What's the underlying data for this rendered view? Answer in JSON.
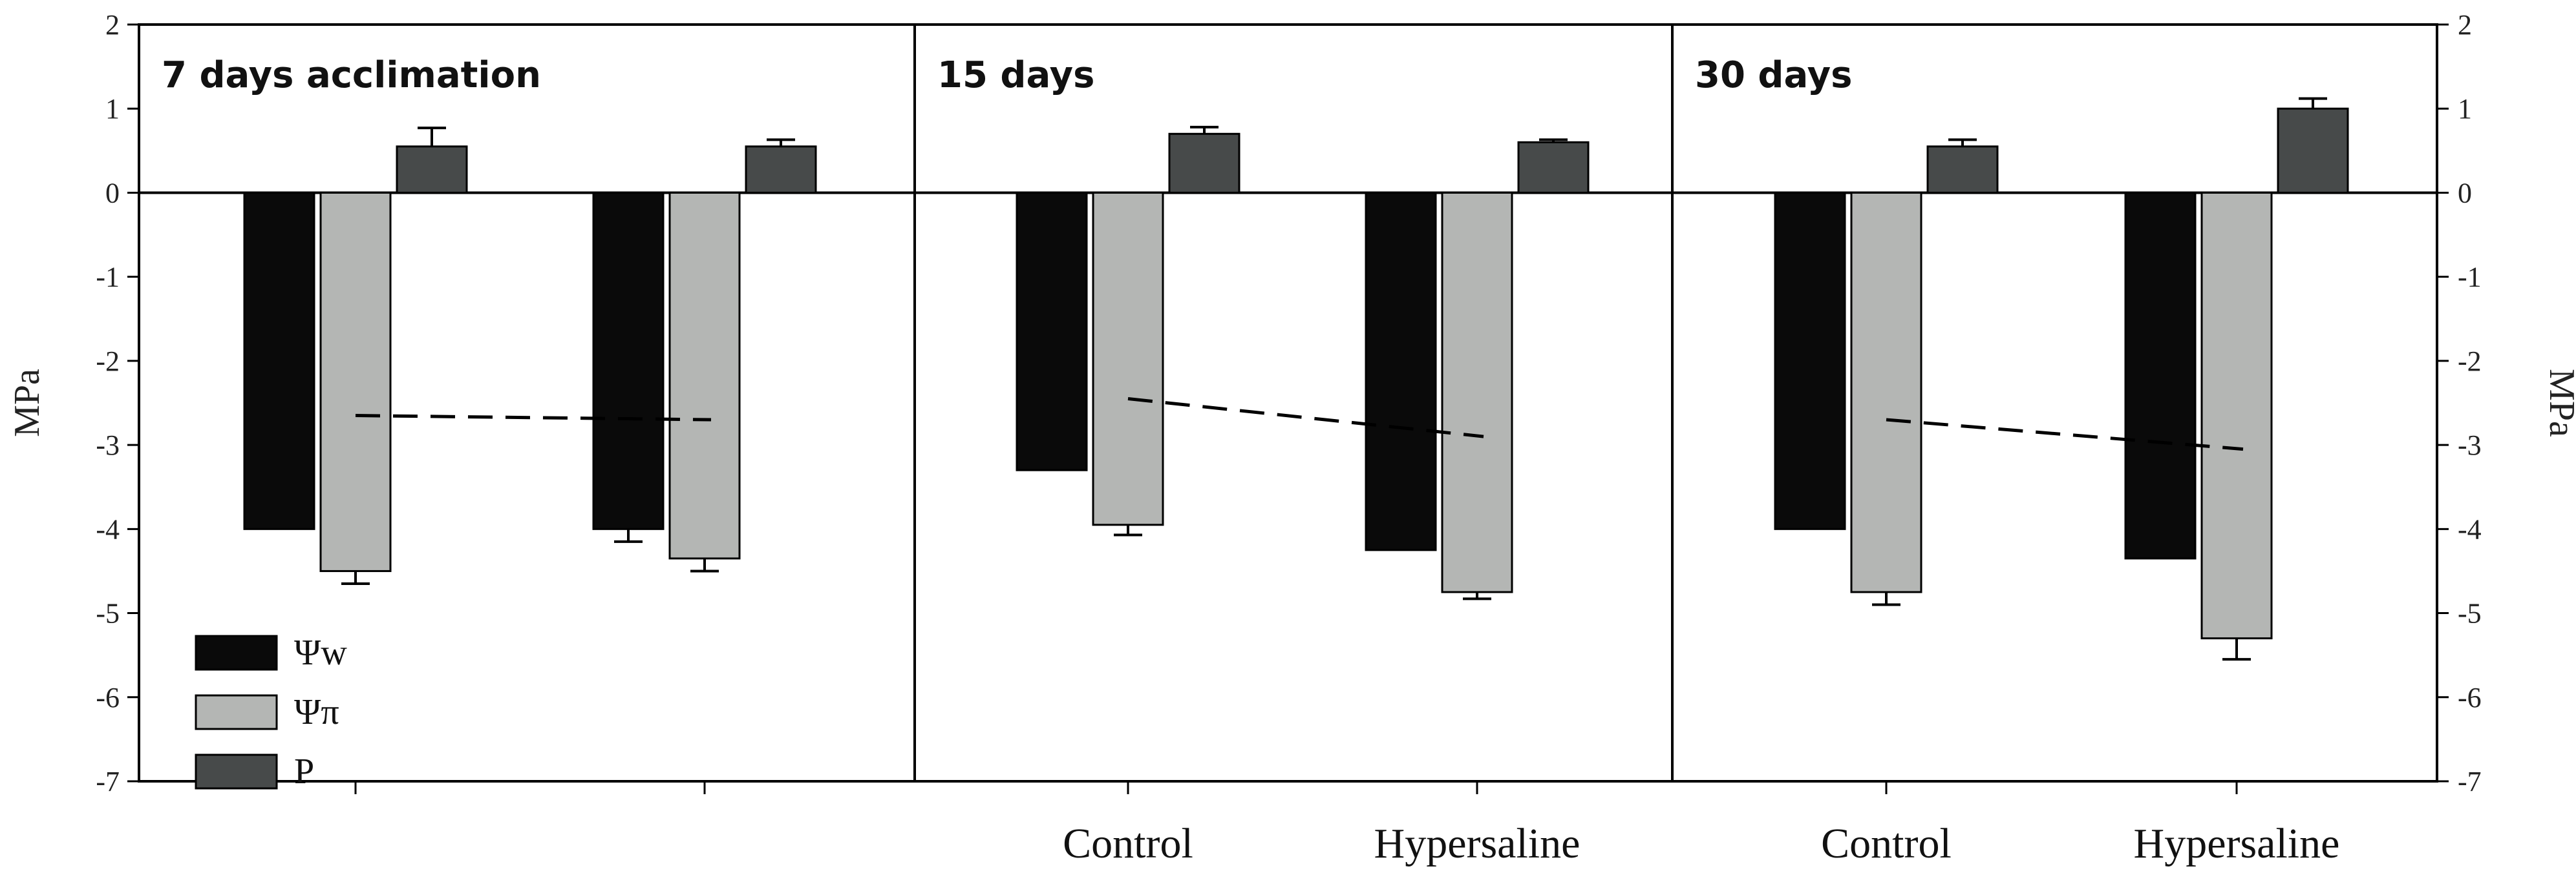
{
  "chart_data": {
    "type": "bar",
    "ylabel": "MPa",
    "ylim": [
      -7,
      2
    ],
    "yticks": [
      2,
      1,
      0,
      -1,
      -2,
      -3,
      -4,
      -5,
      -6,
      -7
    ],
    "legend": {
      "placement": "bottom-left",
      "entries": [
        {
          "label": "Ψw",
          "color": "#0a0a0a"
        },
        {
          "label": "Ψπ",
          "color": "#b4b6b4"
        },
        {
          "label": "P",
          "color": "#474a4a"
        }
      ]
    },
    "panels": [
      {
        "title": "7 days acclimation",
        "categories": [
          "",
          ""
        ],
        "series": [
          {
            "name": "Ψw",
            "values": [
              -4.0,
              -4.0
            ],
            "errors": [
              0.0,
              0.15
            ]
          },
          {
            "name": "Ψπ",
            "values": [
              -4.5,
              -4.35
            ],
            "errors": [
              0.15,
              0.15
            ]
          },
          {
            "name": "P",
            "values": [
              0.55,
              0.55
            ],
            "errors": [
              0.22,
              0.08
            ]
          }
        ],
        "dashed_line": [
          -2.65,
          -2.7
        ]
      },
      {
        "title": "15 days",
        "categories": [
          "Control",
          "Hypersaline"
        ],
        "series": [
          {
            "name": "Ψw",
            "values": [
              -3.3,
              -4.25
            ],
            "errors": [
              0.0,
              0.0
            ]
          },
          {
            "name": "Ψπ",
            "values": [
              -3.95,
              -4.75
            ],
            "errors": [
              0.12,
              0.08
            ]
          },
          {
            "name": "P",
            "values": [
              0.7,
              0.6
            ],
            "errors": [
              0.08,
              0.03
            ]
          }
        ],
        "dashed_line": [
          -2.45,
          -2.9
        ]
      },
      {
        "title": "30 days",
        "categories": [
          "Control",
          "Hypersaline"
        ],
        "series": [
          {
            "name": "Ψw",
            "values": [
              -4.0,
              -4.35
            ],
            "errors": [
              0.0,
              0.0
            ]
          },
          {
            "name": "Ψπ",
            "values": [
              -4.75,
              -5.3
            ],
            "errors": [
              0.15,
              0.25
            ]
          },
          {
            "name": "P",
            "values": [
              0.55,
              1.0
            ],
            "errors": [
              0.08,
              0.12
            ]
          }
        ],
        "dashed_line": [
          -2.7,
          -3.05
        ]
      }
    ]
  }
}
